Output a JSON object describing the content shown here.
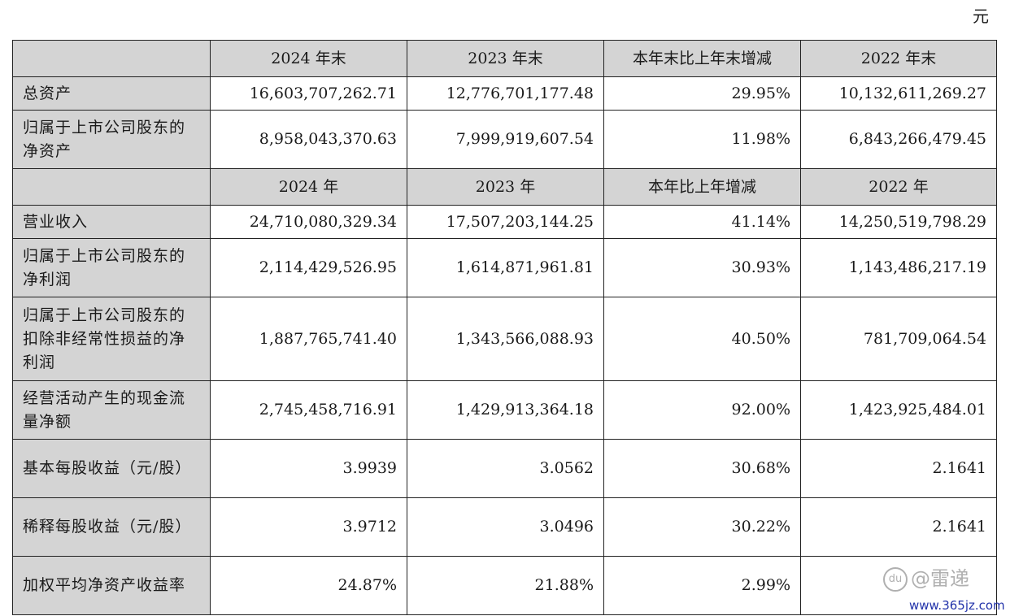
{
  "unit": "元",
  "balance_header": [
    "",
    "2024 年末",
    "2023 年末",
    "本年末比上年末增减",
    "2022 年末"
  ],
  "balance_rows": [
    {
      "label": "总资产",
      "values": [
        "16,603,707,262.71",
        "12,776,701,177.48",
        "29.95%",
        "10,132,611,269.27"
      ]
    },
    {
      "label": "归属于上市公司股东的净资产",
      "values": [
        "8,958,043,370.63",
        "7,999,919,607.54",
        "11.98%",
        "6,843,266,479.45"
      ]
    }
  ],
  "income_header": [
    "",
    "2024 年",
    "2023 年",
    "本年比上年增减",
    "2022 年"
  ],
  "income_rows": [
    {
      "label": "营业收入",
      "values": [
        "24,710,080,329.34",
        "17,507,203,144.25",
        "41.14%",
        "14,250,519,798.29"
      ]
    },
    {
      "label": "归属于上市公司股东的净利润",
      "values": [
        "2,114,429,526.95",
        "1,614,871,961.81",
        "30.93%",
        "1,143,486,217.19"
      ]
    },
    {
      "label": "归属于上市公司股东的扣除非经常性损益的净利润",
      "values": [
        "1,887,765,741.40",
        "1,343,566,088.93",
        "40.50%",
        "781,709,064.54"
      ]
    },
    {
      "label": "经营活动产生的现金流量净额",
      "values": [
        "2,745,458,716.91",
        "1,429,913,364.18",
        "92.00%",
        "1,423,925,484.01"
      ]
    },
    {
      "label": "基本每股收益（元/股）",
      "values": [
        "3.9939",
        "3.0562",
        "30.68%",
        "2.1641"
      ]
    },
    {
      "label": "稀释每股收益（元/股）",
      "values": [
        "3.9712",
        "3.0496",
        "30.22%",
        "2.1641"
      ]
    },
    {
      "label": "加权平均净资产收益率",
      "values": [
        "24.87%",
        "21.88%",
        "2.99%",
        ""
      ]
    }
  ],
  "watermark": {
    "badge": "du",
    "text": "@雷递"
  },
  "site_url": "www.365jz.com"
}
